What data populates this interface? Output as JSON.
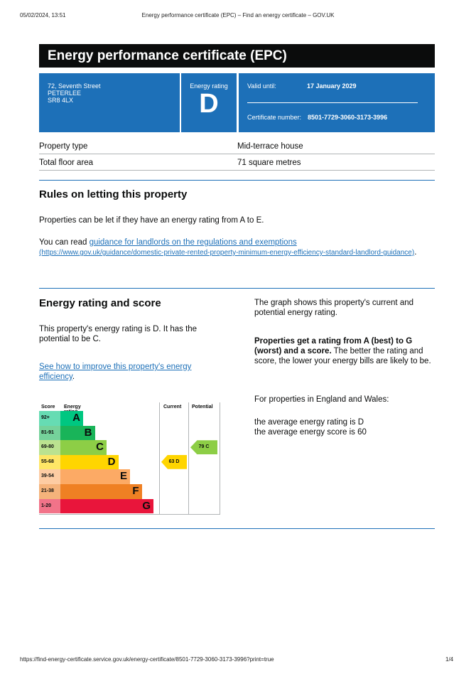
{
  "browser": {
    "datetime": "05/02/2024, 13:51",
    "page_title": "Energy performance certificate (EPC) – Find an energy certificate – GOV.UK",
    "url": "https://find-energy-certificate.service.gov.uk/energy-certificate/8501-7729-3060-3173-3996?print=true",
    "page_number": "1/4"
  },
  "certificate": {
    "title": "Energy performance certificate (EPC)",
    "address": [
      "72, Seventh Street",
      "PETERLEE",
      "SR8 4LX"
    ],
    "rating_label": "Energy rating",
    "rating": "D",
    "valid_label": "Valid until:",
    "valid_until": "17 January 2029",
    "cert_label": "Certificate number:",
    "cert_number": "8501-7729-3060-3173-3996"
  },
  "property": [
    {
      "label": "Property type",
      "value": "Mid-terrace house"
    },
    {
      "label": "Total floor area",
      "value": "71 square metres"
    }
  ],
  "rules": {
    "heading": "Rules on letting this property",
    "p1": "Properties can be let if they have an energy rating from A to E.",
    "p2_prefix": "You can read ",
    "link": "guidance for landlords on the regulations and exemptions",
    "link_url": "(https://www.gov.uk/guidance/domestic-private-rented-property-minimum-energy-efficiency-standard-landlord-guidance)",
    "p2_suffix": "."
  },
  "rating_section": {
    "heading": "Energy rating and score",
    "p1": "This property's energy rating is D. It has the potential to be C.",
    "link": "See how to improve this property's energy efficiency",
    "link_suffix": ".",
    "right_p1": "The graph shows this property's current and potential energy rating.",
    "right_bold": "Properties get a rating from A (best) to G (worst) and a score.",
    "right_p2": " The better the rating and score, the lower your energy bills are likely to be.",
    "right_p3": "For properties in England and Wales:",
    "avg1": "the average energy rating is D",
    "avg2": "the average energy score is 60"
  },
  "chart": {
    "col_score": "Score",
    "col_rating": "Energy rating",
    "col_current": "Current",
    "col_potential": "Potential",
    "bands": [
      {
        "score": "92+",
        "letter": "A",
        "color": "#00c781",
        "score_bg": "#66dcb3"
      },
      {
        "score": "81-91",
        "letter": "B",
        "color": "#19b459",
        "score_bg": "#75d29b"
      },
      {
        "score": "69-80",
        "letter": "C",
        "color": "#8dce46",
        "score_bg": "#bbe290"
      },
      {
        "score": "55-68",
        "letter": "D",
        "color": "#ffd500",
        "score_bg": "#ffe666"
      },
      {
        "score": "39-54",
        "letter": "E",
        "color": "#fcaa65",
        "score_bg": "#fdcca3"
      },
      {
        "score": "21-38",
        "letter": "F",
        "color": "#ef8023",
        "score_bg": "#f5b37b"
      },
      {
        "score": "1-20",
        "letter": "G",
        "color": "#e9153b",
        "score_bg": "#f27389"
      }
    ],
    "current": {
      "label": "63 D",
      "score": 63,
      "band": "D"
    },
    "potential": {
      "label": "79 C",
      "score": 79,
      "band": "C"
    }
  }
}
